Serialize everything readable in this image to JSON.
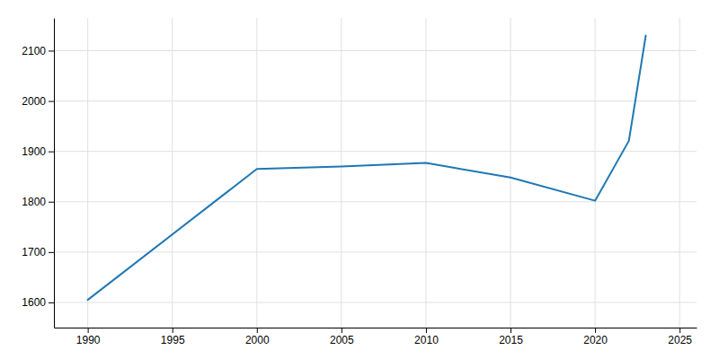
{
  "chart_data": {
    "type": "line",
    "x": [
      1990,
      2000,
      2005,
      2010,
      2015,
      2020,
      2022,
      2023
    ],
    "values": [
      1605,
      1865,
      1870,
      1877,
      1848,
      1802,
      1921,
      2130
    ],
    "xlim": [
      1988,
      2026
    ],
    "ylim": [
      1550,
      2165
    ],
    "xticks": [
      1990,
      1995,
      2000,
      2005,
      2010,
      2015,
      2020,
      2025
    ],
    "yticks": [
      1600,
      1700,
      1800,
      1900,
      2000,
      2100
    ],
    "grid": true
  }
}
